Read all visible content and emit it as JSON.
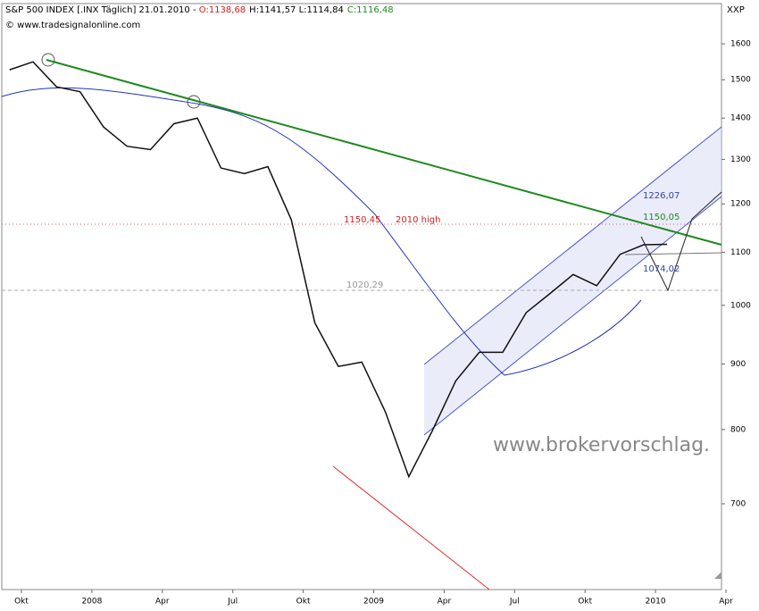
{
  "header": {
    "title": "S&P 500 INDEX [.INX Täglich] 21.01.2010 - ",
    "open": "O:1138,68",
    "highlow": "H:1141,57 L:1114,84",
    "close": "C:1116,48",
    "source": "© www.tradesignalonline.com",
    "code": "XXP"
  },
  "chart_data": {
    "type": "line",
    "log_scale": true,
    "color": "#111111",
    "categories": [
      null,
      "Okt",
      null,
      null,
      "2008",
      null,
      null,
      "Apr",
      null,
      null,
      "Jul",
      null,
      null,
      "Okt",
      null,
      null,
      "2009",
      null,
      null,
      "Apr",
      null,
      null,
      "Jul",
      null,
      null,
      "Okt",
      null,
      null,
      "2010",
      null,
      null,
      "Apr"
    ],
    "series": [
      {
        "name": "S&P 500 INDEX",
        "color": "#111111",
        "values": [
          1527,
          1549,
          1481,
          1468,
          1378,
          1331,
          1323,
          1386,
          1400,
          1280,
          1267,
          1283,
          1166,
          969,
          896,
          903,
          826,
          735,
          798,
          873,
          919,
          919,
          987,
          1021,
          1057,
          1036,
          1096,
          1115,
          1116,
          null,
          null,
          null
        ]
      }
    ],
    "ylim": [
      600,
      1720
    ],
    "yticks": [
      700,
      800,
      900,
      1000,
      1100,
      1200,
      1300,
      1400,
      1500,
      1600
    ],
    "annotations": [
      "1226,07",
      "1150,05",
      "1150,45",
      "2010 high",
      "1020,29",
      "1074,02",
      "www.brokervorschlag."
    ]
  }
}
